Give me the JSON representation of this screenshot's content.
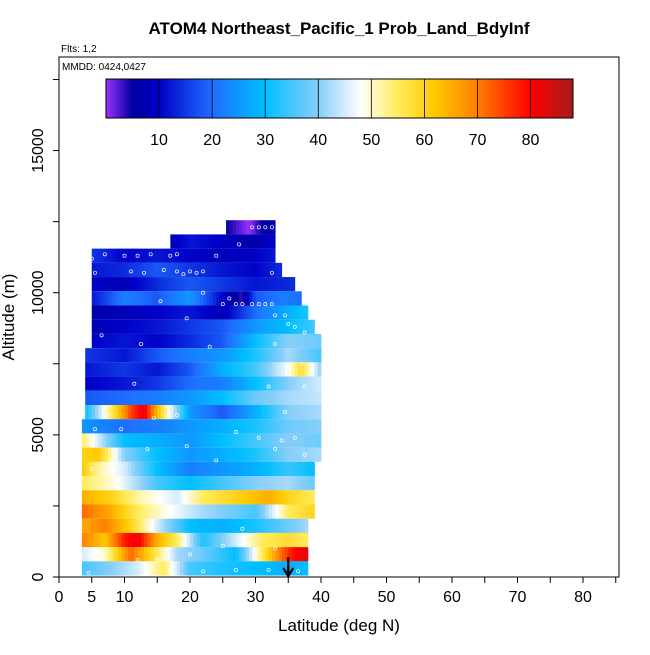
{
  "chart_data": {
    "type": "heatmap",
    "title": "ATOM4 Northeast_Pacific_1 Prob_Land_BdyInf",
    "flights_label": "Flts: 1,2",
    "dates_label": "MMDD: 0424,0427",
    "xlabel": "Latitude (deg N)",
    "ylabel": "Altitude (m)",
    "xlim": [
      0,
      85
    ],
    "ylim": [
      0,
      18000
    ],
    "x_ticks": [
      0,
      5,
      10,
      20,
      30,
      40,
      50,
      60,
      70,
      80
    ],
    "x_tick_labels": [
      "0",
      "5",
      "10",
      "20",
      "30",
      "40",
      "50",
      "60",
      "70",
      "80"
    ],
    "y_ticks": [
      0,
      5000,
      10000,
      15000
    ],
    "y_tick_labels": [
      "0",
      "5000",
      "10000",
      "15000"
    ],
    "colorbar": {
      "range": [
        0,
        88
      ],
      "ticks": [
        10,
        20,
        30,
        40,
        50,
        60,
        70,
        80
      ],
      "tick_labels": [
        "10",
        "20",
        "30",
        "40",
        "50",
        "60",
        "70",
        "80"
      ],
      "stops": [
        {
          "v": 0,
          "c": "#9b30ff"
        },
        {
          "v": 5,
          "c": "#0000a0"
        },
        {
          "v": 10,
          "c": "#0000c8"
        },
        {
          "v": 20,
          "c": "#1e6eff"
        },
        {
          "v": 30,
          "c": "#00bfff"
        },
        {
          "v": 40,
          "c": "#87cefa"
        },
        {
          "v": 48,
          "c": "#ffffff"
        },
        {
          "v": 55,
          "c": "#ffec5a"
        },
        {
          "v": 62,
          "c": "#ffc800"
        },
        {
          "v": 70,
          "c": "#ff7f00"
        },
        {
          "v": 80,
          "c": "#ff0000"
        },
        {
          "v": 88,
          "c": "#a51c1c"
        }
      ]
    },
    "rows": [
      {
        "alt": 12300,
        "lat": [
          25.5,
          33
        ],
        "v": [
          [
            25.5,
            5
          ],
          [
            29,
            0
          ],
          [
            31,
            5
          ],
          [
            33,
            8
          ]
        ]
      },
      {
        "alt": 11800,
        "lat": [
          17,
          33
        ],
        "v": [
          [
            17,
            8
          ],
          [
            20,
            12
          ],
          [
            24,
            10
          ],
          [
            27,
            8
          ],
          [
            30,
            6
          ],
          [
            33,
            10
          ]
        ]
      },
      {
        "alt": 11300,
        "lat": [
          5,
          33
        ],
        "v": [
          [
            5,
            15
          ],
          [
            10,
            10
          ],
          [
            15,
            12
          ],
          [
            20,
            10
          ],
          [
            25,
            8
          ],
          [
            30,
            10
          ],
          [
            33,
            12
          ]
        ]
      },
      {
        "alt": 10800,
        "lat": [
          5,
          34
        ],
        "v": [
          [
            5,
            12
          ],
          [
            10,
            14
          ],
          [
            15,
            18
          ],
          [
            20,
            15
          ],
          [
            25,
            12
          ],
          [
            30,
            10
          ],
          [
            34,
            14
          ]
        ]
      },
      {
        "alt": 10300,
        "lat": [
          5,
          36
        ],
        "v": [
          [
            5,
            10
          ],
          [
            10,
            8
          ],
          [
            15,
            14
          ],
          [
            20,
            18
          ],
          [
            25,
            15
          ],
          [
            30,
            12
          ],
          [
            36,
            14
          ]
        ]
      },
      {
        "alt": 9800,
        "lat": [
          5,
          37
        ],
        "v": [
          [
            5,
            12
          ],
          [
            10,
            22
          ],
          [
            15,
            18
          ],
          [
            20,
            25
          ],
          [
            25,
            10
          ],
          [
            28,
            3
          ],
          [
            30,
            18
          ],
          [
            34,
            22
          ],
          [
            37,
            20
          ]
        ]
      },
      {
        "alt": 9300,
        "lat": [
          5,
          38
        ],
        "v": [
          [
            5,
            6
          ],
          [
            10,
            8
          ],
          [
            15,
            10
          ],
          [
            20,
            12
          ],
          [
            25,
            8
          ],
          [
            30,
            20
          ],
          [
            35,
            28
          ],
          [
            38,
            32
          ]
        ]
      },
      {
        "alt": 8800,
        "lat": [
          5,
          39
        ],
        "v": [
          [
            5,
            8
          ],
          [
            10,
            10
          ],
          [
            15,
            12
          ],
          [
            20,
            15
          ],
          [
            25,
            18
          ],
          [
            30,
            25
          ],
          [
            35,
            30
          ],
          [
            39,
            35
          ]
        ]
      },
      {
        "alt": 8300,
        "lat": [
          5,
          40
        ],
        "v": [
          [
            5,
            10
          ],
          [
            10,
            12
          ],
          [
            15,
            10
          ],
          [
            20,
            14
          ],
          [
            25,
            18
          ],
          [
            30,
            30
          ],
          [
            35,
            40
          ],
          [
            40,
            38
          ]
        ]
      },
      {
        "alt": 7800,
        "lat": [
          4,
          40
        ],
        "v": [
          [
            4,
            15
          ],
          [
            10,
            12
          ],
          [
            15,
            18
          ],
          [
            20,
            22
          ],
          [
            25,
            25
          ],
          [
            30,
            32
          ],
          [
            35,
            42
          ],
          [
            40,
            35
          ]
        ]
      },
      {
        "alt": 7300,
        "lat": [
          4,
          40
        ],
        "v": [
          [
            4,
            12
          ],
          [
            10,
            15
          ],
          [
            15,
            12
          ],
          [
            20,
            18
          ],
          [
            25,
            28
          ],
          [
            30,
            35
          ],
          [
            35,
            48
          ],
          [
            37,
            58
          ],
          [
            40,
            40
          ]
        ]
      },
      {
        "alt": 6800,
        "lat": [
          4,
          40
        ],
        "v": [
          [
            4,
            10
          ],
          [
            10,
            12
          ],
          [
            15,
            15
          ],
          [
            20,
            20
          ],
          [
            25,
            22
          ],
          [
            30,
            30
          ],
          [
            35,
            40
          ],
          [
            40,
            45
          ]
        ]
      },
      {
        "alt": 6300,
        "lat": [
          4,
          40
        ],
        "v": [
          [
            4,
            18
          ],
          [
            10,
            20
          ],
          [
            15,
            22
          ],
          [
            20,
            25
          ],
          [
            25,
            30
          ],
          [
            30,
            38
          ],
          [
            35,
            42
          ],
          [
            40,
            44
          ]
        ]
      },
      {
        "alt": 5800,
        "lat": [
          4,
          40
        ],
        "v": [
          [
            4,
            30
          ],
          [
            8,
            55
          ],
          [
            11,
            75
          ],
          [
            13,
            82
          ],
          [
            16,
            55
          ],
          [
            20,
            25
          ],
          [
            25,
            18
          ],
          [
            30,
            28
          ],
          [
            35,
            40
          ],
          [
            40,
            42
          ]
        ]
      },
      {
        "alt": 5300,
        "lat": [
          3.5,
          40
        ],
        "v": [
          [
            3.5,
            25
          ],
          [
            10,
            20
          ],
          [
            15,
            22
          ],
          [
            20,
            25
          ],
          [
            25,
            28
          ],
          [
            30,
            32
          ],
          [
            35,
            38
          ],
          [
            40,
            40
          ]
        ]
      },
      {
        "alt": 4800,
        "lat": [
          3.5,
          40
        ],
        "v": [
          [
            3.5,
            55
          ],
          [
            6,
            45
          ],
          [
            10,
            30
          ],
          [
            15,
            28
          ],
          [
            20,
            25
          ],
          [
            25,
            30
          ],
          [
            30,
            35
          ],
          [
            35,
            40
          ],
          [
            40,
            38
          ]
        ]
      },
      {
        "alt": 4300,
        "lat": [
          3.5,
          40
        ],
        "v": [
          [
            3.5,
            60
          ],
          [
            6,
            62
          ],
          [
            10,
            40
          ],
          [
            15,
            30
          ],
          [
            20,
            25
          ],
          [
            25,
            28
          ],
          [
            30,
            32
          ],
          [
            35,
            40
          ],
          [
            40,
            42
          ]
        ]
      },
      {
        "alt": 3800,
        "lat": [
          3.5,
          39
        ],
        "v": [
          [
            3.5,
            62
          ],
          [
            6,
            52
          ],
          [
            10,
            45
          ],
          [
            15,
            30
          ],
          [
            20,
            22
          ],
          [
            25,
            25
          ],
          [
            30,
            28
          ],
          [
            35,
            34
          ],
          [
            39,
            30
          ]
        ]
      },
      {
        "alt": 3300,
        "lat": [
          3.5,
          39
        ],
        "v": [
          [
            3.5,
            55
          ],
          [
            8,
            50
          ],
          [
            12,
            42
          ],
          [
            15,
            35
          ],
          [
            20,
            30
          ],
          [
            25,
            35
          ],
          [
            30,
            40
          ],
          [
            35,
            42
          ],
          [
            39,
            38
          ]
        ]
      },
      {
        "alt": 2800,
        "lat": [
          3.5,
          39
        ],
        "v": [
          [
            3.5,
            65
          ],
          [
            8,
            60
          ],
          [
            12,
            52
          ],
          [
            18,
            45
          ],
          [
            22,
            55
          ],
          [
            27,
            60
          ],
          [
            32,
            65
          ],
          [
            35,
            60
          ],
          [
            39,
            55
          ]
        ]
      },
      {
        "alt": 2300,
        "lat": [
          3.5,
          39
        ],
        "v": [
          [
            3.5,
            72
          ],
          [
            8,
            65
          ],
          [
            12,
            55
          ],
          [
            17,
            48
          ],
          [
            22,
            42
          ],
          [
            27,
            38
          ],
          [
            30,
            35
          ],
          [
            35,
            55
          ],
          [
            39,
            60
          ]
        ]
      },
      {
        "alt": 1800,
        "lat": [
          3.5,
          38
        ],
        "v": [
          [
            3.5,
            65
          ],
          [
            7,
            70
          ],
          [
            11,
            60
          ],
          [
            15,
            45
          ],
          [
            20,
            30
          ],
          [
            25,
            28
          ],
          [
            30,
            32
          ],
          [
            35,
            38
          ],
          [
            38,
            42
          ]
        ]
      },
      {
        "alt": 1300,
        "lat": [
          3.5,
          38
        ],
        "v": [
          [
            3.5,
            70
          ],
          [
            7,
            62
          ],
          [
            10,
            78
          ],
          [
            12,
            82
          ],
          [
            15,
            65
          ],
          [
            18,
            55
          ],
          [
            22,
            32
          ],
          [
            27,
            45
          ],
          [
            31,
            55
          ],
          [
            35,
            58
          ],
          [
            38,
            55
          ]
        ]
      },
      {
        "alt": 800,
        "lat": [
          3.5,
          38
        ],
        "v": [
          [
            3.5,
            45
          ],
          [
            7,
            50
          ],
          [
            11,
            72
          ],
          [
            15,
            55
          ],
          [
            18,
            42
          ],
          [
            22,
            38
          ],
          [
            27,
            30
          ],
          [
            31,
            55
          ],
          [
            34,
            72
          ],
          [
            36,
            80
          ],
          [
            38,
            82
          ]
        ]
      },
      {
        "alt": 300,
        "lat": [
          3.5,
          38
        ],
        "v": [
          [
            3.5,
            35
          ],
          [
            8,
            40
          ],
          [
            12,
            45
          ],
          [
            16,
            55
          ],
          [
            20,
            35
          ],
          [
            25,
            32
          ],
          [
            30,
            30
          ],
          [
            35,
            28
          ],
          [
            38,
            30
          ]
        ]
      }
    ],
    "points": [
      [
        29.5,
        12300
      ],
      [
        30.5,
        12300
      ],
      [
        31.5,
        12300
      ],
      [
        32.5,
        12300
      ],
      [
        27.5,
        11700
      ],
      [
        5,
        11200
      ],
      [
        7,
        11350
      ],
      [
        10,
        11300
      ],
      [
        12,
        11300
      ],
      [
        14,
        11350
      ],
      [
        17,
        11300
      ],
      [
        18,
        11350
      ],
      [
        24,
        11300
      ],
      [
        5.5,
        10700
      ],
      [
        11,
        10750
      ],
      [
        13,
        10700
      ],
      [
        16,
        10800
      ],
      [
        18,
        10750
      ],
      [
        19,
        10650
      ],
      [
        20,
        10750
      ],
      [
        21,
        10700
      ],
      [
        22,
        10750
      ],
      [
        32.5,
        10700
      ],
      [
        15.5,
        9700
      ],
      [
        22,
        10000
      ],
      [
        25,
        9600
      ],
      [
        26,
        9800
      ],
      [
        27,
        9600
      ],
      [
        28,
        9600
      ],
      [
        29.5,
        9600
      ],
      [
        30.5,
        9600
      ],
      [
        31.5,
        9600
      ],
      [
        32.5,
        9600
      ],
      [
        33,
        9200
      ],
      [
        19.5,
        9100
      ],
      [
        34.5,
        9200
      ],
      [
        35,
        8900
      ],
      [
        36,
        8800
      ],
      [
        37.5,
        8600
      ],
      [
        6.5,
        8500
      ],
      [
        12.5,
        8200
      ],
      [
        23,
        8100
      ],
      [
        33,
        8200
      ],
      [
        37,
        7500
      ],
      [
        11.5,
        6800
      ],
      [
        32,
        6700
      ],
      [
        37.5,
        6700
      ],
      [
        34.5,
        5800
      ],
      [
        18,
        5700
      ],
      [
        14.5,
        5600
      ],
      [
        5.5,
        5200
      ],
      [
        9.5,
        5200
      ],
      [
        27,
        5100
      ],
      [
        19.5,
        4600
      ],
      [
        34,
        4800
      ],
      [
        30.5,
        4900
      ],
      [
        13.5,
        4500
      ],
      [
        24,
        4100
      ],
      [
        33,
        4500
      ],
      [
        36,
        4900
      ],
      [
        5,
        3800
      ],
      [
        37.5,
        4300
      ],
      [
        28,
        1700
      ],
      [
        20,
        800
      ],
      [
        25,
        1100
      ],
      [
        33,
        1000
      ],
      [
        12,
        600
      ],
      [
        15,
        600
      ],
      [
        17,
        250
      ],
      [
        22,
        200
      ],
      [
        27,
        250
      ],
      [
        32,
        250
      ],
      [
        4.5,
        150
      ],
      [
        36.5,
        200
      ]
    ],
    "arrow": {
      "lat": 35,
      "alt_top": 700,
      "alt_bottom": 0
    }
  }
}
